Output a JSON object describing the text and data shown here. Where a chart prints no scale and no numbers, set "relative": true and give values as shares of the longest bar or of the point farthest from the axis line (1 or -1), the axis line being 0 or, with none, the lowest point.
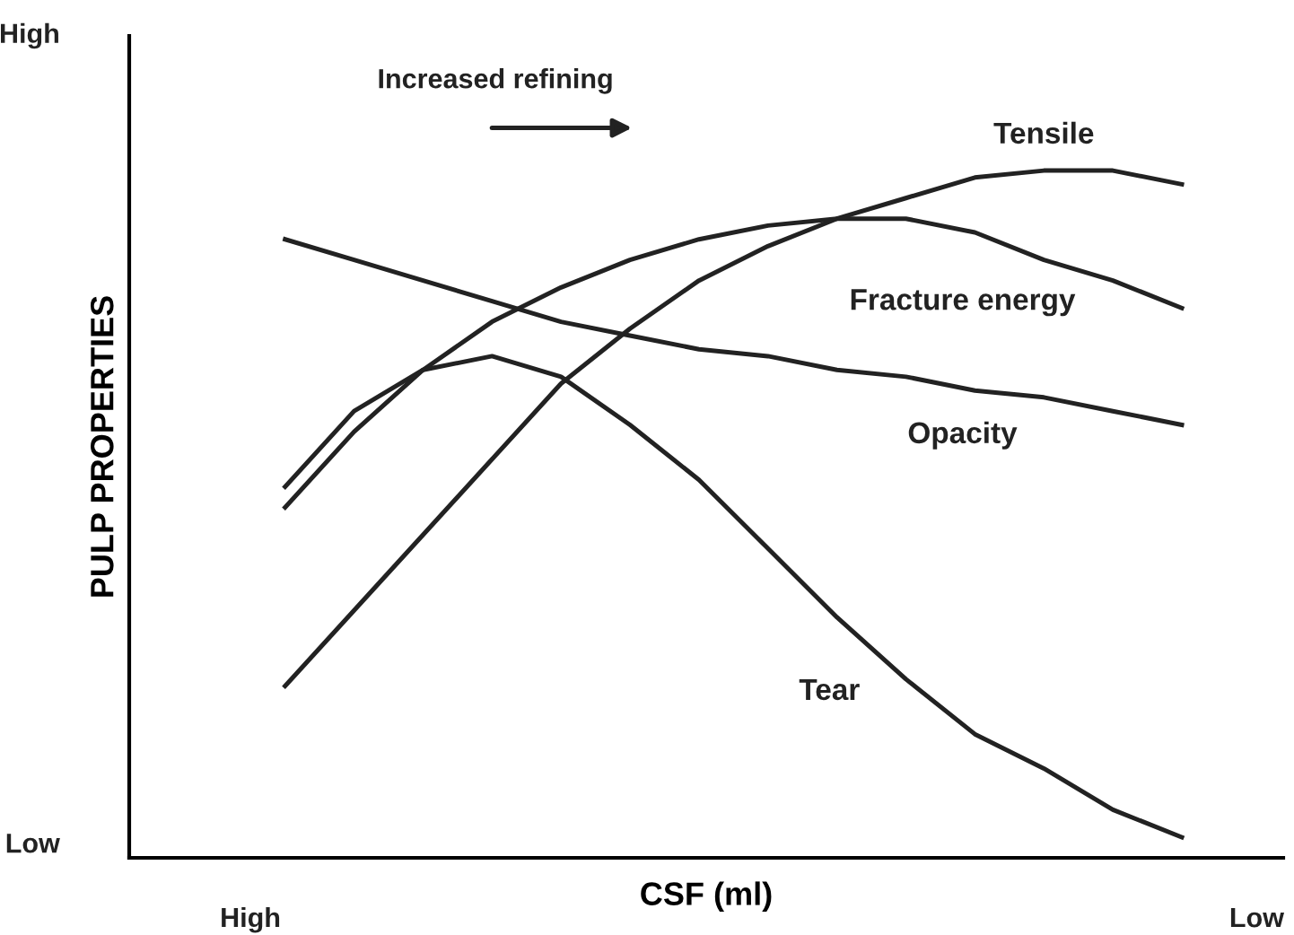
{
  "chart_data": {
    "type": "line",
    "relative": true,
    "xlabel": "CSF (ml)",
    "ylabel": "PULP PROPERTIES",
    "categories": [
      null,
      null,
      null,
      null,
      null,
      null,
      null,
      null,
      null,
      null,
      null,
      null,
      null,
      null
    ],
    "series": [
      {
        "name": "Tensile",
        "color": "#222222",
        "values": [
          0.25,
          0.36,
          0.47,
          0.58,
          0.69,
          0.77,
          0.84,
          0.89,
          0.93,
          0.96,
          0.99,
          1.0,
          1.0,
          0.98
        ]
      },
      {
        "name": "Fracture energy",
        "color": "#222222",
        "values": [
          0.51,
          0.62,
          0.71,
          0.78,
          0.83,
          0.87,
          0.9,
          0.92,
          0.93,
          0.93,
          0.91,
          0.87,
          0.84,
          0.8
        ]
      },
      {
        "name": "Opacity",
        "color": "#222222",
        "values": [
          0.9,
          0.87,
          0.84,
          0.81,
          0.78,
          0.76,
          0.74,
          0.73,
          0.71,
          0.7,
          0.68,
          0.67,
          0.65,
          0.63
        ]
      },
      {
        "name": "Tear",
        "color": "#222222",
        "values": [
          0.54,
          0.65,
          0.71,
          0.73,
          0.7,
          0.63,
          0.55,
          0.45,
          0.35,
          0.26,
          0.18,
          0.13,
          0.07,
          0.03
        ]
      }
    ],
    "annotations": [
      "High",
      "Low",
      "High",
      "Low",
      "Increased refining"
    ],
    "grid": false,
    "legend": false,
    "marker": "none",
    "line_style": "solid"
  }
}
